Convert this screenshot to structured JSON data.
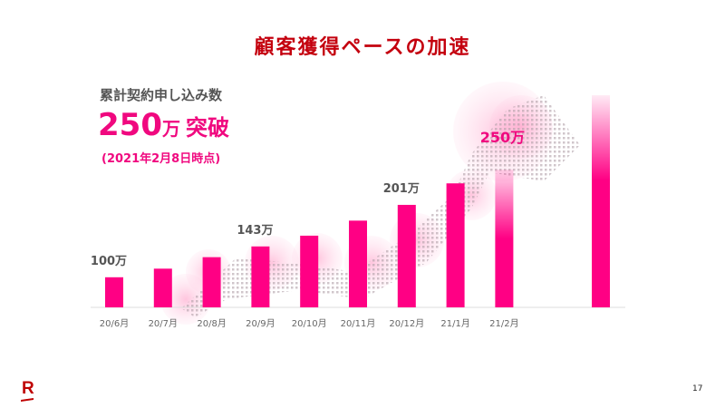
{
  "title": "顧客獲得ペースの加速",
  "headline": {
    "label": "累計契約申し込み数",
    "number": "250",
    "unit": "万",
    "suffix": "突破",
    "as_of": "(2021年2月8日時点)"
  },
  "colors": {
    "bar": "#ff0084",
    "title": "#c4000e",
    "accent": "#f0087f"
  },
  "chart_data": {
    "type": "bar",
    "categories": [
      "20/6月",
      "20/7月",
      "20/8月",
      "20/9月",
      "20/10月",
      "20/11月",
      "20/12月",
      "21/1月",
      "21/2月"
    ],
    "values": [
      100,
      112,
      128,
      143,
      158,
      179,
      201,
      231,
      250
    ],
    "unit": "万",
    "data_labels": [
      {
        "category": "20/6月",
        "text": "100万"
      },
      {
        "category": "20/9月",
        "text": "143万"
      },
      {
        "category": "20/12月",
        "text": "201万"
      },
      {
        "category": "21/2月",
        "text": "250万"
      }
    ],
    "grid": false,
    "legend": "none"
  },
  "footer": {
    "logo": "R",
    "page_number": "17"
  }
}
